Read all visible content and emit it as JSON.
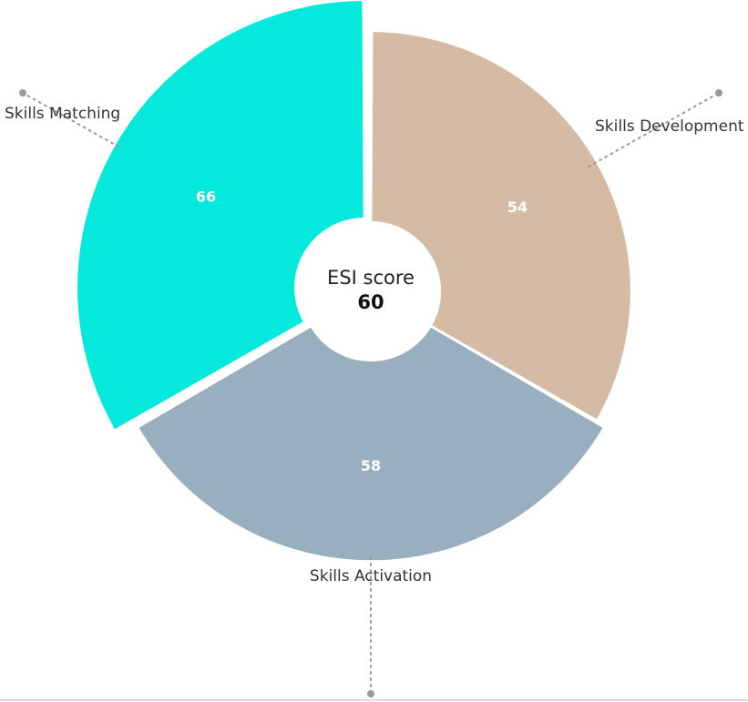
{
  "chart_data": {
    "type": "pie",
    "variant": "variable-radius rose with center hole",
    "center": {
      "title": "ESI score",
      "value": "60"
    },
    "categories": [
      "Skills Development",
      "Skills Activation",
      "Skills Matching"
    ],
    "values": [
      54,
      58,
      66
    ],
    "slice_labels": [
      "54",
      "58",
      "66"
    ],
    "colors": [
      "#d6bba4",
      "#97afbe",
      "#05e8dc"
    ],
    "value_scale_max": 66,
    "legend": "none"
  }
}
